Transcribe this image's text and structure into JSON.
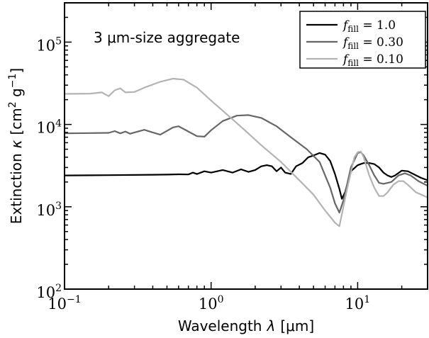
{
  "chart_data": {
    "type": "line",
    "annotation": "3 μm-size aggregate",
    "xlabel": {
      "text": "Wavelength",
      "symbol": "λ",
      "unit": "[μm]"
    },
    "ylabel": {
      "text": "Extinction",
      "symbol": "κ",
      "unit_open": "[cm",
      "unit_cm_exp": "2",
      "unit_g": " g",
      "unit_g_exp": "−1",
      "unit_close": "]"
    },
    "xscale": "log",
    "yscale": "log",
    "xlim": [
      0.1,
      30
    ],
    "ylim": [
      100,
      300000
    ],
    "xticks": [
      {
        "value": 0.1,
        "base": "10",
        "exp": "−1"
      },
      {
        "value": 1,
        "base": "10",
        "exp": "0"
      },
      {
        "value": 10,
        "base": "10",
        "exp": "1"
      }
    ],
    "yticks": [
      {
        "value": 100,
        "base": "10",
        "exp": "2"
      },
      {
        "value": 1000,
        "base": "10",
        "exp": "3"
      },
      {
        "value": 10000,
        "base": "10",
        "exp": "4"
      },
      {
        "value": 100000,
        "base": "10",
        "exp": "5"
      }
    ],
    "grid": false,
    "legend_position": "top-right",
    "series": [
      {
        "name": "f_fill = 1.0",
        "legend_symbol": "f",
        "legend_sub": "fill",
        "legend_value": " = 1.0",
        "color": "#000000",
        "points": [
          [
            0.1,
            2400
          ],
          [
            0.2,
            2420
          ],
          [
            0.4,
            2450
          ],
          [
            0.5,
            2460
          ],
          [
            0.6,
            2480
          ],
          [
            0.7,
            2470
          ],
          [
            0.75,
            2600
          ],
          [
            0.8,
            2500
          ],
          [
            0.9,
            2700
          ],
          [
            1.0,
            2600
          ],
          [
            1.2,
            2800
          ],
          [
            1.4,
            2600
          ],
          [
            1.6,
            2850
          ],
          [
            1.8,
            2650
          ],
          [
            2.0,
            2800
          ],
          [
            2.2,
            3100
          ],
          [
            2.4,
            3200
          ],
          [
            2.6,
            3100
          ],
          [
            2.8,
            2700
          ],
          [
            3.0,
            3000
          ],
          [
            3.2,
            2600
          ],
          [
            3.5,
            2500
          ],
          [
            3.8,
            3100
          ],
          [
            4.2,
            3400
          ],
          [
            4.6,
            4000
          ],
          [
            5.0,
            4200
          ],
          [
            5.5,
            4500
          ],
          [
            6.0,
            4300
          ],
          [
            6.5,
            3600
          ],
          [
            7.0,
            2500
          ],
          [
            7.5,
            1650
          ],
          [
            7.8,
            1250
          ],
          [
            8.2,
            1500
          ],
          [
            9.0,
            2700
          ],
          [
            10.0,
            3200
          ],
          [
            11.0,
            3400
          ],
          [
            12.0,
            3400
          ],
          [
            13.0,
            3300
          ],
          [
            14.0,
            3000
          ],
          [
            15.0,
            2600
          ],
          [
            16.0,
            2400
          ],
          [
            17.0,
            2300
          ],
          [
            18.0,
            2400
          ],
          [
            20.0,
            2750
          ],
          [
            22.0,
            2700
          ],
          [
            24.0,
            2500
          ],
          [
            27.0,
            2250
          ],
          [
            30.0,
            2100
          ]
        ]
      },
      {
        "name": "f_fill = 0.30",
        "legend_symbol": "f",
        "legend_sub": "fill",
        "legend_value": " = 0.30",
        "color": "#666666",
        "points": [
          [
            0.1,
            7800
          ],
          [
            0.15,
            7850
          ],
          [
            0.2,
            7900
          ],
          [
            0.22,
            8300
          ],
          [
            0.24,
            7800
          ],
          [
            0.26,
            8200
          ],
          [
            0.28,
            7700
          ],
          [
            0.3,
            8000
          ],
          [
            0.35,
            8600
          ],
          [
            0.4,
            8000
          ],
          [
            0.45,
            7500
          ],
          [
            0.55,
            9200
          ],
          [
            0.6,
            9500
          ],
          [
            0.7,
            8200
          ],
          [
            0.8,
            7200
          ],
          [
            0.9,
            7100
          ],
          [
            1.0,
            8500
          ],
          [
            1.2,
            11000
          ],
          [
            1.5,
            12800
          ],
          [
            1.8,
            13000
          ],
          [
            2.2,
            12000
          ],
          [
            2.8,
            9500
          ],
          [
            3.5,
            7000
          ],
          [
            4.5,
            5000
          ],
          [
            5.5,
            3500
          ],
          [
            6.5,
            1700
          ],
          [
            7.0,
            1100
          ],
          [
            7.5,
            850
          ],
          [
            8.0,
            1200
          ],
          [
            9.0,
            3000
          ],
          [
            10.0,
            4500
          ],
          [
            10.5,
            4600
          ],
          [
            11.0,
            4200
          ],
          [
            12.0,
            3200
          ],
          [
            13.0,
            2400
          ],
          [
            14.0,
            1950
          ],
          [
            15.0,
            1900
          ],
          [
            17.0,
            2000
          ],
          [
            19.0,
            2400
          ],
          [
            21.0,
            2550
          ],
          [
            23.0,
            2400
          ],
          [
            26.0,
            2050
          ],
          [
            30.0,
            1800
          ]
        ]
      },
      {
        "name": "f_fill = 0.10",
        "legend_symbol": "f",
        "legend_sub": "fill",
        "legend_value": " = 0.10",
        "color": "#b3b3b3",
        "points": [
          [
            0.1,
            23500
          ],
          [
            0.15,
            23700
          ],
          [
            0.18,
            24500
          ],
          [
            0.2,
            22000
          ],
          [
            0.22,
            26000
          ],
          [
            0.24,
            27500
          ],
          [
            0.26,
            24500
          ],
          [
            0.3,
            24800
          ],
          [
            0.35,
            28000
          ],
          [
            0.45,
            33000
          ],
          [
            0.55,
            36000
          ],
          [
            0.65,
            35000
          ],
          [
            0.8,
            28000
          ],
          [
            1.0,
            19500
          ],
          [
            1.3,
            13000
          ],
          [
            1.7,
            8500
          ],
          [
            2.2,
            5600
          ],
          [
            3.0,
            3500
          ],
          [
            4.0,
            2100
          ],
          [
            5.0,
            1400
          ],
          [
            6.0,
            900
          ],
          [
            7.0,
            640
          ],
          [
            7.5,
            580
          ],
          [
            8.5,
            1700
          ],
          [
            9.5,
            4000
          ],
          [
            10.0,
            4600
          ],
          [
            10.5,
            4700
          ],
          [
            11.0,
            4000
          ],
          [
            12.0,
            2400
          ],
          [
            13.0,
            1700
          ],
          [
            14.0,
            1350
          ],
          [
            15.0,
            1350
          ],
          [
            16.0,
            1500
          ],
          [
            17.5,
            1850
          ],
          [
            19.0,
            2050
          ],
          [
            20.5,
            2050
          ],
          [
            22.0,
            1850
          ],
          [
            25.0,
            1500
          ],
          [
            30.0,
            1300
          ]
        ]
      }
    ]
  }
}
